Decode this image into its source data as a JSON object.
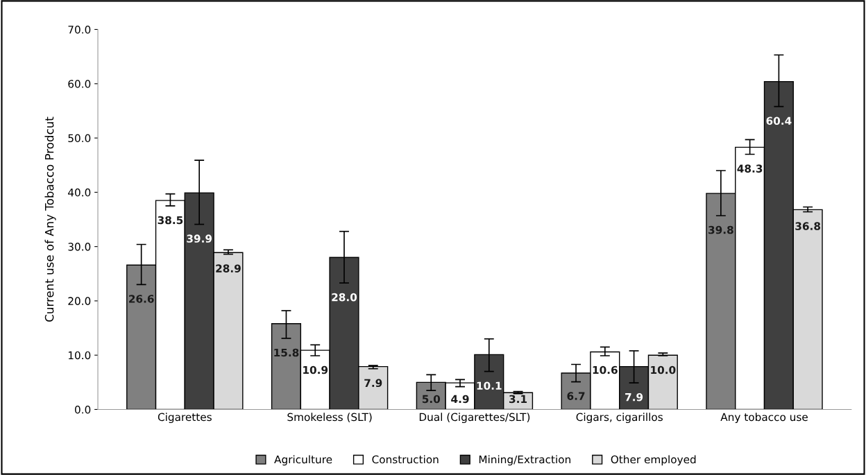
{
  "chart_data": {
    "type": "bar",
    "ylabel": "Current use of Any Tobacco Prodcut",
    "categories": [
      "Cigarettes",
      "Smokeless (SLT)",
      "Dual (Cigarettes/SLT)",
      "Cigars, cigarillos",
      "Any tobacco use"
    ],
    "series": [
      {
        "name": "Agriculture",
        "color": "#808080",
        "values": [
          26.6,
          15.8,
          5.0,
          6.7,
          39.8
        ],
        "errors": [
          [
            23.0,
            30.4
          ],
          [
            13.1,
            18.2
          ],
          [
            3.5,
            6.4
          ],
          [
            5.1,
            8.3
          ],
          [
            35.7,
            44.0
          ]
        ],
        "value_labels": [
          "26.6",
          "15.8",
          "5.0",
          "6.7",
          "39.8"
        ]
      },
      {
        "name": "Construction",
        "color": "#ffffff",
        "values": [
          38.5,
          10.9,
          4.9,
          10.6,
          48.3
        ],
        "errors": [
          [
            37.5,
            39.7
          ],
          [
            9.9,
            11.9
          ],
          [
            4.2,
            5.5
          ],
          [
            9.9,
            11.5
          ],
          [
            47.0,
            49.7
          ]
        ],
        "value_labels": [
          "38.5",
          "10.9",
          "4.9",
          "10.6",
          "48.3"
        ]
      },
      {
        "name": "Mining/Extraction",
        "color": "#404040",
        "values": [
          39.9,
          28.0,
          10.1,
          7.9,
          60.4
        ],
        "errors": [
          [
            34.1,
            45.9
          ],
          [
            23.3,
            32.8
          ],
          [
            7.0,
            13.0
          ],
          [
            4.9,
            10.8
          ],
          [
            55.8,
            65.3
          ]
        ],
        "value_labels": [
          "39.9",
          "28.0",
          "10.1",
          "7.9",
          "60.4"
        ]
      },
      {
        "name": "Other employed",
        "color": "#d9d9d9",
        "values": [
          28.9,
          7.9,
          3.1,
          10.0,
          36.8
        ],
        "errors": [
          [
            28.6,
            29.4
          ],
          [
            7.5,
            8.1
          ],
          [
            2.9,
            3.3
          ],
          [
            9.9,
            10.4
          ],
          [
            36.4,
            37.3
          ]
        ],
        "value_labels": [
          "28.9",
          "7.9",
          "3.1",
          "10.0",
          "36.8"
        ]
      }
    ],
    "ylim": [
      0,
      70
    ],
    "yticks": [
      {
        "value": 0,
        "label": "0.0"
      },
      {
        "value": 10,
        "label": "10.0"
      },
      {
        "value": 20,
        "label": "20.0"
      },
      {
        "value": 30,
        "label": "30.0"
      },
      {
        "value": 40,
        "label": "40.0"
      },
      {
        "value": 50,
        "label": "50.0"
      },
      {
        "value": 60,
        "label": "60.0"
      },
      {
        "value": 70,
        "label": "70.0"
      }
    ],
    "grid": false,
    "legend": "bottom"
  }
}
